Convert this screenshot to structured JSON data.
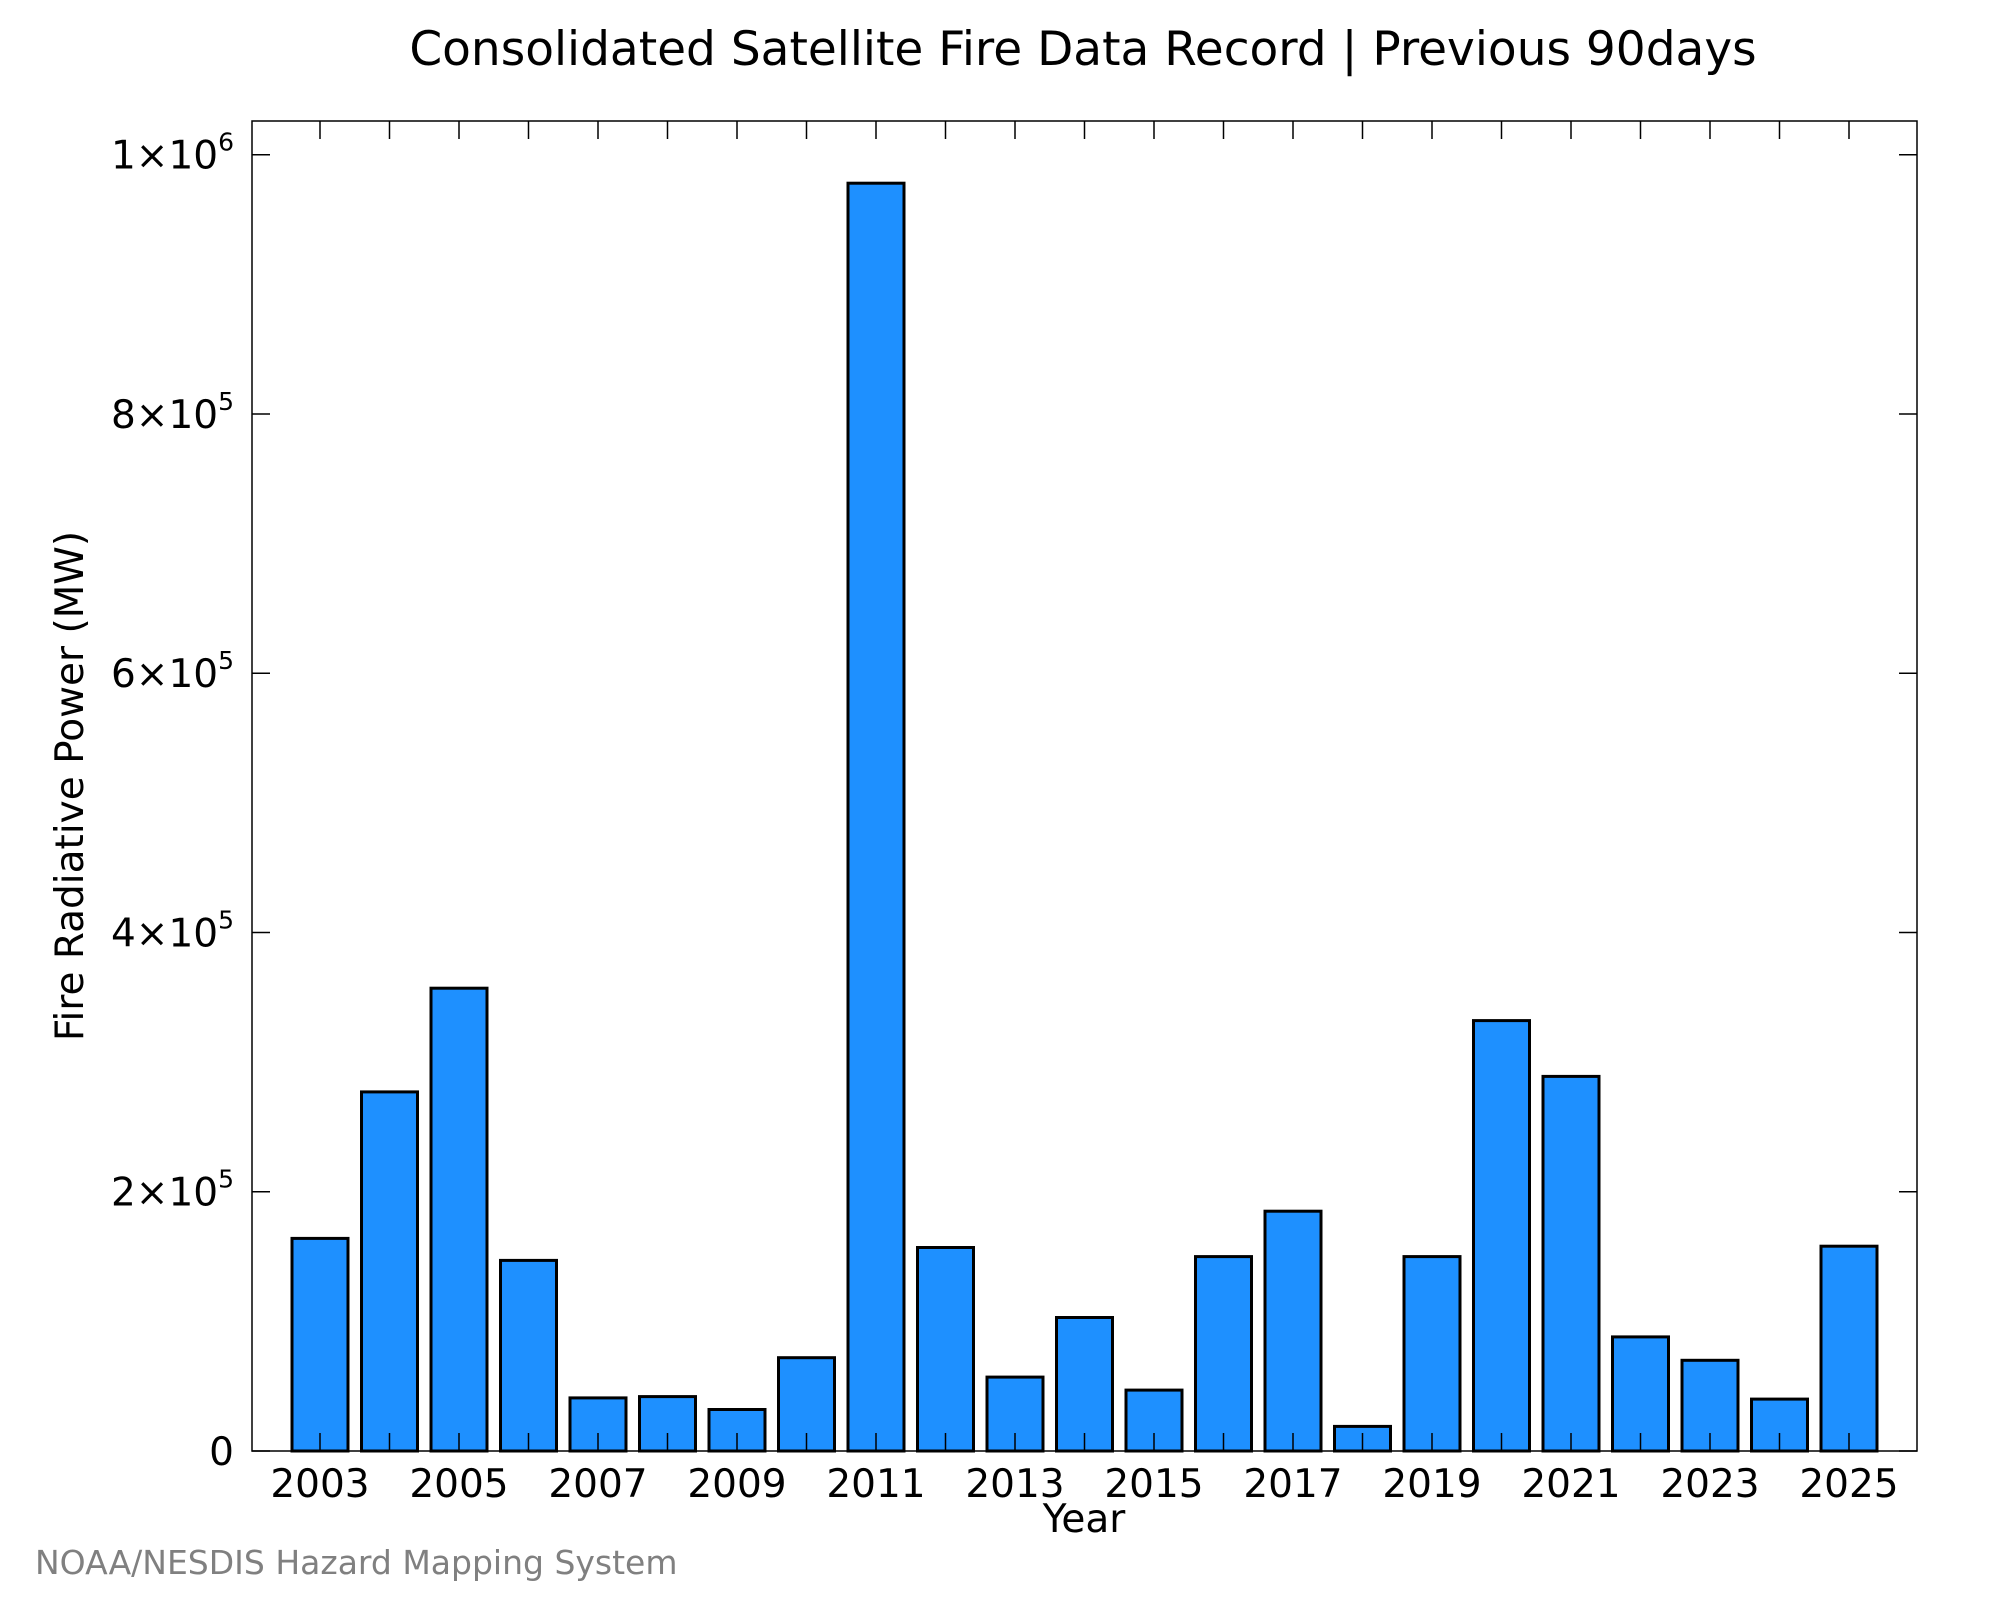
{
  "chart_data": {
    "type": "bar",
    "title": "Consolidated Satellite Fire Data Record | Previous 90days",
    "xlabel": "Year",
    "ylabel": "Fire Radiative Power (MW)",
    "credit": "NOAA/NESDIS Hazard Mapping System",
    "categories": [
      "2003",
      "2004",
      "2005",
      "2006",
      "2007",
      "2008",
      "2009",
      "2010",
      "2011",
      "2012",
      "2013",
      "2014",
      "2015",
      "2016",
      "2017",
      "2018",
      "2019",
      "2020",
      "2021",
      "2022",
      "2023",
      "2024",
      "2025"
    ],
    "x_tick_labels": [
      "2003",
      "2005",
      "2007",
      "2009",
      "2011",
      "2013",
      "2015",
      "2017",
      "2019",
      "2021",
      "2023",
      "2025"
    ],
    "values": [
      164000,
      277000,
      357000,
      147000,
      41000,
      42000,
      32000,
      72000,
      978000,
      157000,
      57000,
      103000,
      47000,
      150000,
      185000,
      19000,
      150000,
      332000,
      289000,
      88000,
      70000,
      40000,
      158000
    ],
    "y_ticks": [
      {
        "value": 0,
        "mant": "0",
        "exp": ""
      },
      {
        "value": 200000,
        "mant": "2×10",
        "exp": "5"
      },
      {
        "value": 400000,
        "mant": "4×10",
        "exp": "5"
      },
      {
        "value": 600000,
        "mant": "6×10",
        "exp": "5"
      },
      {
        "value": 800000,
        "mant": "8×10",
        "exp": "5"
      },
      {
        "value": 1000000,
        "mant": "1×10",
        "exp": "6"
      }
    ],
    "ylim": [
      0,
      1026000
    ],
    "grid": false,
    "legend": "none",
    "bar_color": "#1e90ff",
    "bar_edge_color": "#000000"
  }
}
